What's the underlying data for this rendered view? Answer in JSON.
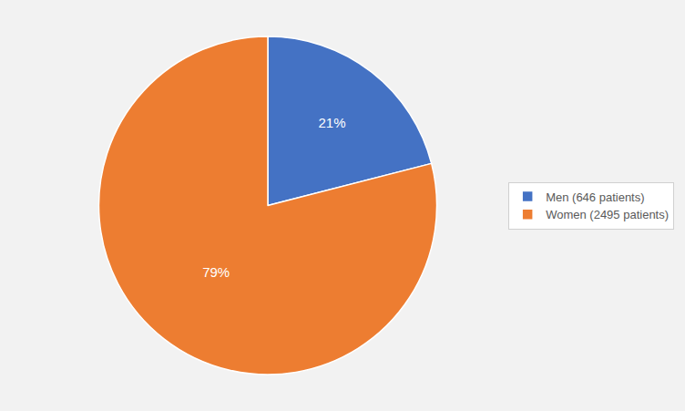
{
  "chart_data": {
    "type": "pie",
    "categories": [
      "Men (646 patients)",
      "Women (2495 patients)"
    ],
    "values": [
      21,
      79
    ],
    "value_labels": [
      "21%",
      "79%"
    ],
    "colors": [
      "#4472C4",
      "#ED7D31"
    ],
    "data_labels": true,
    "legend": "right"
  }
}
